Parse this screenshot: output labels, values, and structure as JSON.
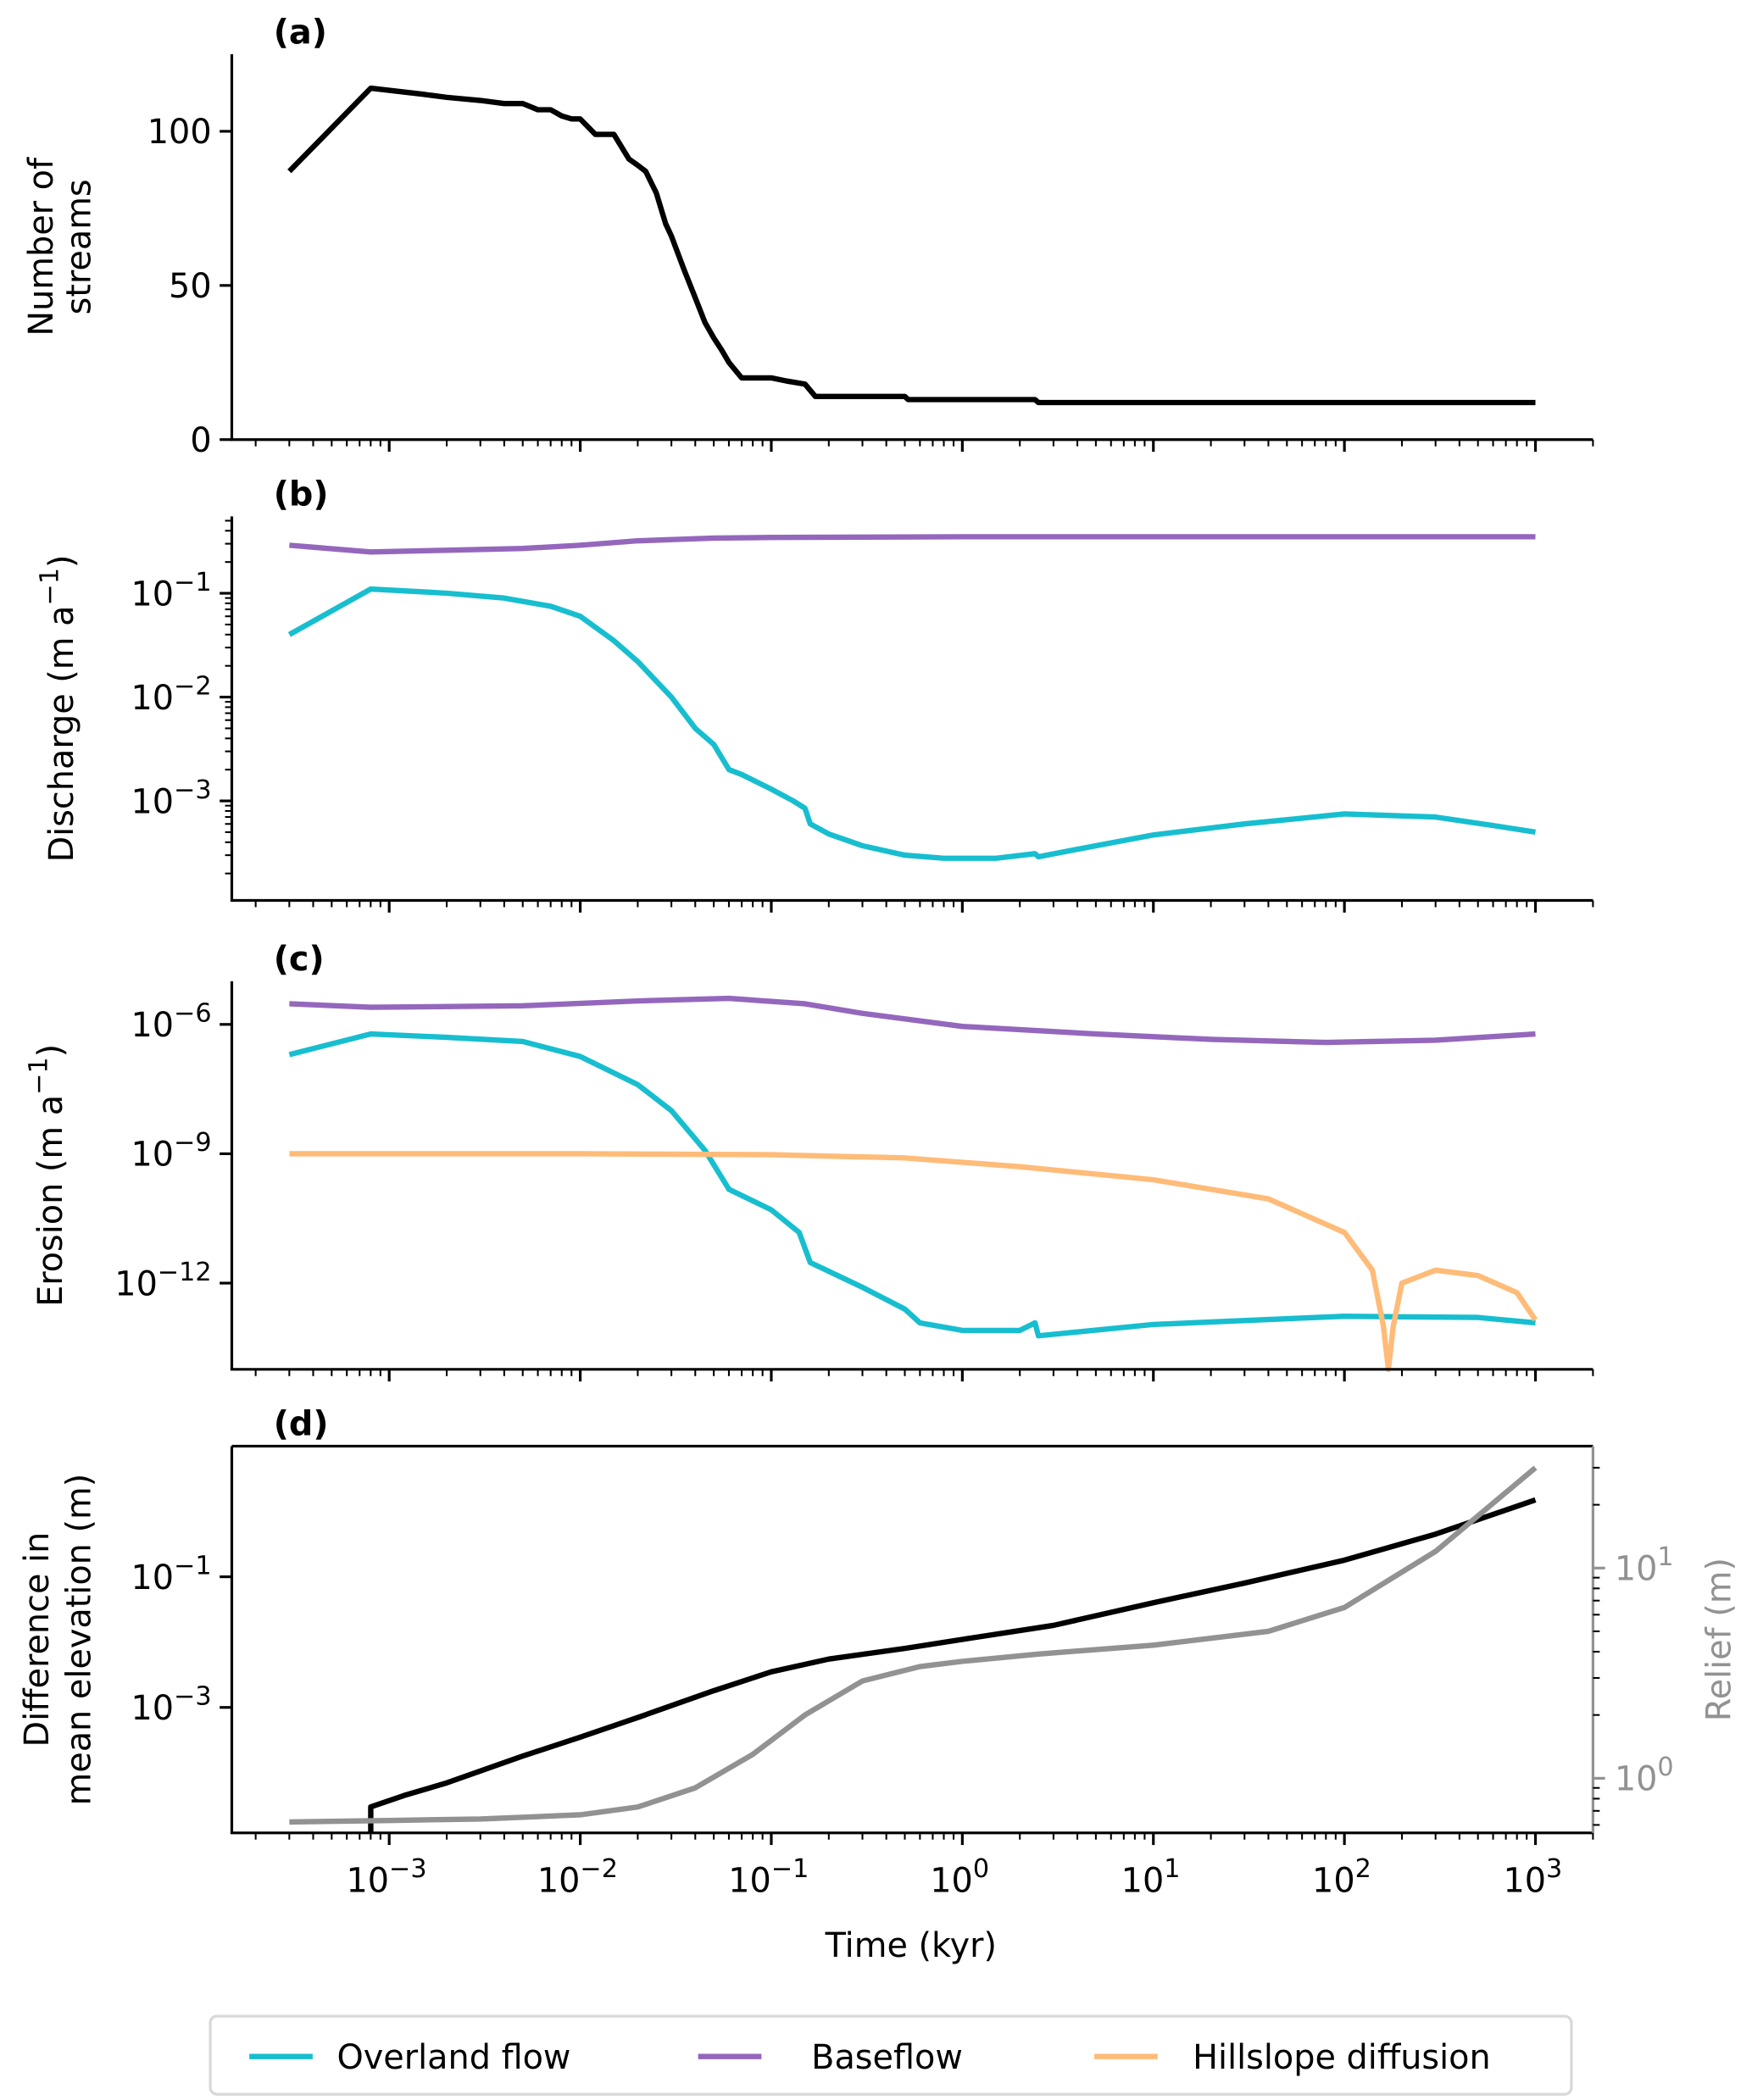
{
  "chart_data": [
    {
      "panel": "(a)",
      "type": "line",
      "xscale": "log",
      "yscale": "linear",
      "xlabel": "",
      "ylabel": "Number of\nstreams",
      "ylim": [
        0,
        125
      ],
      "xlim": [
        0.00015,
        2000
      ],
      "yticks": [
        {
          "v": 0,
          "label": "0"
        },
        {
          "v": 50,
          "label": "50"
        },
        {
          "v": 100,
          "label": "100"
        }
      ],
      "series": [
        {
          "name": "Number of streams",
          "color": "#000000",
          "x": [
            0.0003,
            0.0008,
            0.0015,
            0.002,
            0.003,
            0.004,
            0.005,
            0.006,
            0.007,
            0.008,
            0.009,
            0.01,
            0.012,
            0.015,
            0.018,
            0.02,
            0.022,
            0.025,
            0.028,
            0.03,
            0.035,
            0.04,
            0.045,
            0.05,
            0.055,
            0.06,
            0.07,
            0.1,
            0.12,
            0.15,
            0.17,
            0.5,
            0.52,
            2.4,
            2.5,
            1000
          ],
          "y": [
            87,
            114,
            112,
            111,
            110,
            109,
            109,
            107,
            107,
            105,
            104,
            104,
            99,
            99,
            91,
            89,
            87,
            80,
            70,
            66,
            55,
            46,
            38,
            33,
            29,
            25,
            20,
            20,
            19,
            18,
            14,
            14,
            13,
            13,
            12,
            12
          ]
        }
      ]
    },
    {
      "panel": "(b)",
      "type": "line",
      "xscale": "log",
      "yscale": "log",
      "xlabel": "",
      "ylabel": "Discharge (m a⁻¹)",
      "ylim": [
        0.00011,
        0.55
      ],
      "xlim": [
        0.00015,
        2000
      ],
      "yticks": [
        {
          "v": 0.1,
          "label": "10⁻¹"
        },
        {
          "v": 0.01,
          "label": "10⁻²"
        },
        {
          "v": 0.001,
          "label": "10⁻³"
        }
      ],
      "series": [
        {
          "name": "Baseflow",
          "color": "#9467bd",
          "x": [
            0.0003,
            0.0008,
            0.002,
            0.005,
            0.01,
            0.02,
            0.05,
            0.1,
            1,
            10,
            100,
            1000
          ],
          "y": [
            0.29,
            0.25,
            0.26,
            0.27,
            0.29,
            0.32,
            0.34,
            0.345,
            0.35,
            0.35,
            0.35,
            0.35
          ]
        },
        {
          "name": "Overland flow",
          "color": "#17becf",
          "x": [
            0.0003,
            0.0008,
            0.002,
            0.004,
            0.007,
            0.01,
            0.015,
            0.02,
            0.03,
            0.04,
            0.05,
            0.06,
            0.07,
            0.1,
            0.13,
            0.15,
            0.16,
            0.2,
            0.3,
            0.5,
            0.8,
            1.5,
            2.4,
            2.5,
            5,
            10,
            30,
            100,
            300,
            600,
            1000
          ],
          "y": [
            0.04,
            0.11,
            0.1,
            0.09,
            0.075,
            0.06,
            0.035,
            0.022,
            0.01,
            0.005,
            0.0035,
            0.002,
            0.0018,
            0.0013,
            0.001,
            0.00085,
            0.0006,
            0.00048,
            0.00037,
            0.0003,
            0.00028,
            0.00028,
            0.00031,
            0.00029,
            0.00037,
            0.00047,
            0.0006,
            0.00075,
            0.0007,
            0.00058,
            0.0005
          ]
        }
      ]
    },
    {
      "panel": "(c)",
      "type": "line",
      "xscale": "log",
      "yscale": "log",
      "xlabel": "",
      "ylabel": "Erosion (m a⁻¹)",
      "ylim": [
        1e-14,
        1e-05
      ],
      "xlim": [
        0.00015,
        2000
      ],
      "yticks": [
        {
          "v": 1e-06,
          "label": "10⁻⁶"
        },
        {
          "v": 1e-09,
          "label": "10⁻⁹"
        },
        {
          "v": 1e-12,
          "label": "10⁻¹²"
        }
      ],
      "series": [
        {
          "name": "Baseflow",
          "color": "#9467bd",
          "x": [
            0.0003,
            0.0008,
            0.005,
            0.02,
            0.06,
            0.15,
            0.3,
            1,
            5,
            20,
            80,
            300,
            1000
          ],
          "y": [
            3e-06,
            2.5e-06,
            2.7e-06,
            3.5e-06,
            4e-06,
            3e-06,
            1.8e-06,
            9e-07,
            6e-07,
            4.5e-07,
            3.8e-07,
            4.3e-07,
            6e-07
          ]
        },
        {
          "name": "Overland flow",
          "color": "#17becf",
          "x": [
            0.0003,
            0.0008,
            0.002,
            0.005,
            0.01,
            0.02,
            0.03,
            0.045,
            0.06,
            0.1,
            0.14,
            0.16,
            0.3,
            0.5,
            0.6,
            1,
            2,
            2.4,
            2.5,
            10,
            100,
            500,
            1000
          ],
          "y": [
            2e-07,
            6e-07,
            5e-07,
            4e-07,
            1.8e-07,
            4e-08,
            1e-08,
            1.2e-09,
            1.5e-10,
            5e-11,
            1.5e-11,
            3e-12,
            8e-13,
            2.5e-13,
            1.2e-13,
            8e-14,
            8e-14,
            1.2e-13,
            6e-14,
            1.1e-13,
            1.7e-13,
            1.6e-13,
            1.2e-13
          ]
        },
        {
          "name": "Hillslope diffusion",
          "color": "#ffbb78",
          "x": [
            0.0003,
            0.01,
            0.1,
            0.5,
            2,
            10,
            40,
            100,
            140,
            160,
            170,
            180,
            200,
            300,
            500,
            800,
            1000
          ],
          "y": [
            1e-09,
            1e-09,
            9.5e-10,
            8e-10,
            5e-10,
            2.5e-10,
            9e-11,
            1.5e-11,
            2e-12,
            1e-13,
            1e-14,
            1e-13,
            1e-12,
            2e-12,
            1.5e-12,
            6e-13,
            1.4e-13
          ]
        }
      ]
    },
    {
      "panel": "(d)",
      "type": "line",
      "xscale": "log",
      "yscale": "log",
      "xlabel": "Time (kyr)",
      "ylabel": "Difference in\nmean elevation (m)",
      "ylabel_right": "Relief (m)",
      "ylim": [
        1.2e-05,
        10
      ],
      "ylim_right": [
        0.55,
        38
      ],
      "xlim": [
        0.00015,
        2000
      ],
      "yticks": [
        {
          "v": 0.1,
          "label": "10⁻¹"
        },
        {
          "v": 0.001,
          "label": "10⁻³"
        }
      ],
      "yticks_right": [
        {
          "v": 10,
          "label": "10¹"
        },
        {
          "v": 1,
          "label": "10⁰"
        }
      ],
      "xticks": [
        {
          "v": 0.001,
          "label": "10⁻³"
        },
        {
          "v": 0.01,
          "label": "10⁻²"
        },
        {
          "v": 0.1,
          "label": "10⁻¹"
        },
        {
          "v": 1,
          "label": "10⁰"
        },
        {
          "v": 10,
          "label": "10¹"
        },
        {
          "v": 100,
          "label": "10²"
        },
        {
          "v": 1000,
          "label": "10³"
        }
      ],
      "series": [
        {
          "name": "Difference in mean elevation",
          "axis": "left",
          "color": "#000000",
          "x": [
            0.0008,
            0.0008,
            0.0012,
            0.002,
            0.005,
            0.01,
            0.02,
            0.05,
            0.1,
            0.2,
            0.5,
            1,
            3,
            10,
            30,
            100,
            300,
            1000
          ],
          "y": [
            1.2e-05,
            3e-05,
            4.5e-05,
            7e-05,
            0.00018,
            0.00035,
            0.0007,
            0.0018,
            0.0035,
            0.0055,
            0.008,
            0.011,
            0.018,
            0.04,
            0.08,
            0.18,
            0.45,
            1.5
          ]
        },
        {
          "name": "Relief",
          "axis": "right",
          "color": "#929292",
          "x": [
            0.0003,
            0.001,
            0.003,
            0.01,
            0.02,
            0.04,
            0.08,
            0.15,
            0.3,
            0.6,
            1,
            2.5,
            10,
            40,
            100,
            300,
            1000
          ],
          "y": [
            0.62,
            0.63,
            0.64,
            0.67,
            0.73,
            0.9,
            1.3,
            2.0,
            2.9,
            3.4,
            3.6,
            3.9,
            4.3,
            5.0,
            6.5,
            12,
            30
          ]
        }
      ]
    }
  ],
  "legend": {
    "placement": "bottom-center",
    "items": [
      {
        "label": "Overland flow",
        "color": "#17becf"
      },
      {
        "label": "Baseflow",
        "color": "#9467bd"
      },
      {
        "label": "Hillslope diffusion",
        "color": "#ffbb78"
      }
    ]
  }
}
